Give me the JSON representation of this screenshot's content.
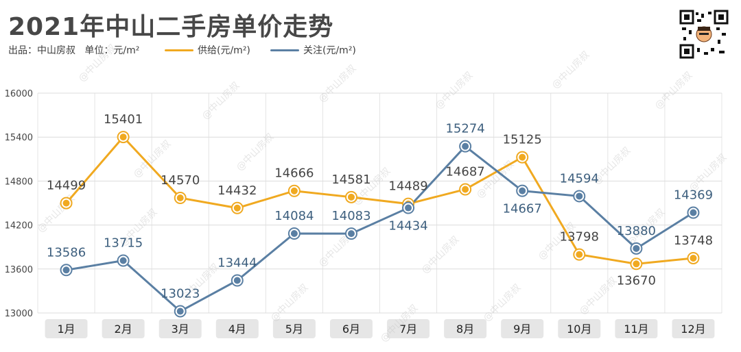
{
  "title": "2021年中山二手房单价走势",
  "source": "出品：中山房叔",
  "unit": "单位：元/m²",
  "watermark": "@中山房叔",
  "colors": {
    "supply": "#f0a920",
    "attention": "#5a7fa3",
    "grid": "#dcdcdc"
  },
  "chart_data": {
    "type": "line",
    "title": "2021年中山二手房单价走势",
    "xlabel": "",
    "ylabel": "",
    "categories": [
      "1月",
      "2月",
      "3月",
      "4月",
      "5月",
      "6月",
      "7月",
      "8月",
      "9月",
      "10月",
      "11月",
      "12月"
    ],
    "ylim": [
      13000,
      16000
    ],
    "yticks": [
      13000,
      13600,
      14200,
      14800,
      15400,
      16000
    ],
    "grid": true,
    "legend": "top",
    "series": [
      {
        "name": "供给(元/m²)",
        "color": "#f0a920",
        "values": [
          14499,
          15401,
          14570,
          14432,
          14666,
          14581,
          14489,
          14687,
          15125,
          13798,
          13670,
          13748
        ]
      },
      {
        "name": "关注(元/m²)",
        "color": "#5a7fa3",
        "values": [
          13586,
          13715,
          13023,
          13444,
          14084,
          14083,
          14434,
          15274,
          14667,
          14594,
          13880,
          14369
        ]
      }
    ]
  }
}
